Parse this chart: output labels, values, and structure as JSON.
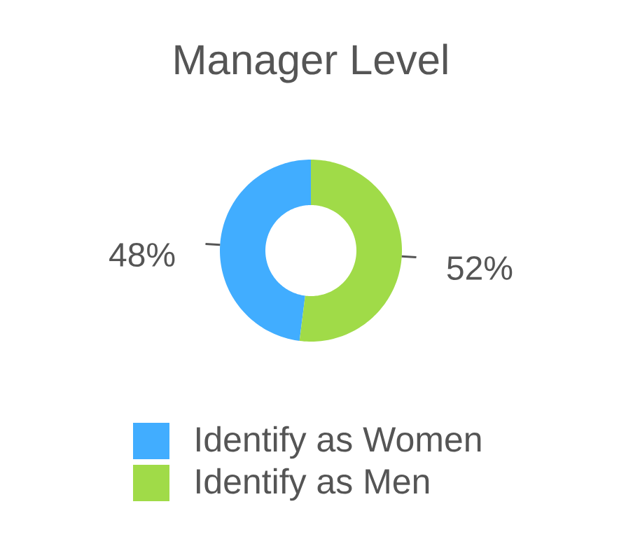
{
  "chart_data": {
    "type": "donut",
    "title": "Manager Level",
    "categories": [
      "Identify as Women",
      "Identify as Men"
    ],
    "values": [
      48,
      52
    ],
    "colors": [
      "#41adff",
      "#a0db48"
    ],
    "value_labels": [
      "48%",
      "52%"
    ],
    "legend": "bottom"
  }
}
